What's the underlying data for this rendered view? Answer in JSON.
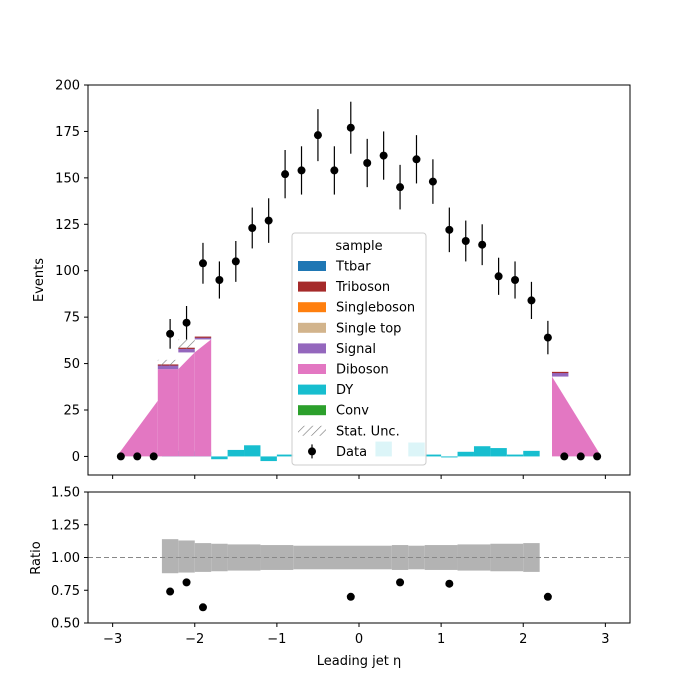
{
  "chart_data": [
    {
      "type": "histogram",
      "ylabel": "Events",
      "xlim": [
        -3.3,
        3.3
      ],
      "ylim": [
        -10,
        200
      ],
      "yticks": [
        0,
        25,
        50,
        75,
        100,
        125,
        150,
        175,
        200
      ],
      "bin_edges": [
        -3.0,
        -2.8,
        -2.6,
        -2.4,
        -2.2,
        -2.0,
        -1.8,
        -1.6,
        -1.4,
        -1.2,
        -1.0,
        -0.8,
        -0.6,
        -0.4,
        -0.2,
        0.0,
        0.2,
        0.4,
        0.6,
        0.8,
        1.0,
        1.2,
        1.4,
        1.6,
        1.8,
        2.0,
        2.2,
        2.4,
        2.6,
        2.8,
        3.0
      ],
      "dy_values": [
        0,
        0,
        0,
        3,
        3,
        2.5,
        -1.5,
        3.5,
        6,
        -2.5,
        1,
        0,
        0,
        0,
        0,
        0,
        8,
        0,
        7.5,
        1,
        -0.5,
        2.5,
        5.5,
        4.5,
        1,
        3,
        0,
        0,
        0,
        0
      ],
      "diboson_ramps": [
        {
          "x": [
            -2.95,
            -2.45
          ],
          "top": [
            0,
            30
          ]
        },
        {
          "x": [
            -2.45,
            -2.2
          ],
          "top": [
            47,
            47
          ]
        },
        {
          "x": [
            -2.2,
            -2.0
          ],
          "top": [
            47,
            56
          ]
        },
        {
          "x": [
            -2.0,
            -1.8
          ],
          "top": [
            56,
            63
          ]
        },
        {
          "x": [
            2.35,
            2.95
          ],
          "top": [
            43,
            0
          ]
        }
      ],
      "signal_caps": [
        {
          "x": [
            -2.45,
            -2.2
          ],
          "y0": 47,
          "y1": 49
        },
        {
          "x": [
            -2.2,
            -2.0
          ],
          "y0": 56,
          "y1": 58
        },
        {
          "x": [
            -2.0,
            -1.8
          ],
          "y0": 63,
          "y1": 64
        },
        {
          "x": [
            2.35,
            2.55
          ],
          "y0": 43,
          "y1": 45
        }
      ],
      "stat_unc_boxes": [
        {
          "x": [
            -2.45,
            -2.2
          ],
          "y0": 49,
          "y1": 52
        },
        {
          "x": [
            -2.2,
            -2.0
          ],
          "y0": 58,
          "y1": 63
        }
      ],
      "data_points": [
        {
          "x": -2.9,
          "y": 0,
          "err": 0
        },
        {
          "x": -2.7,
          "y": 0,
          "err": 0
        },
        {
          "x": -2.5,
          "y": 0,
          "err": 0
        },
        {
          "x": -2.3,
          "y": 66,
          "err": 8
        },
        {
          "x": -2.1,
          "y": 72,
          "err": 9
        },
        {
          "x": -1.9,
          "y": 104,
          "err": 11
        },
        {
          "x": -1.7,
          "y": 95,
          "err": 10
        },
        {
          "x": -1.5,
          "y": 105,
          "err": 11
        },
        {
          "x": -1.3,
          "y": 123,
          "err": 11
        },
        {
          "x": -1.1,
          "y": 127,
          "err": 12
        },
        {
          "x": -0.9,
          "y": 152,
          "err": 13
        },
        {
          "x": -0.7,
          "y": 154,
          "err": 13
        },
        {
          "x": -0.5,
          "y": 173,
          "err": 14
        },
        {
          "x": -0.3,
          "y": 154,
          "err": 13
        },
        {
          "x": -0.1,
          "y": 177,
          "err": 14
        },
        {
          "x": 0.1,
          "y": 158,
          "err": 13
        },
        {
          "x": 0.3,
          "y": 162,
          "err": 13
        },
        {
          "x": 0.5,
          "y": 145,
          "err": 12
        },
        {
          "x": 0.7,
          "y": 160,
          "err": 13
        },
        {
          "x": 0.9,
          "y": 148,
          "err": 12
        },
        {
          "x": 1.1,
          "y": 122,
          "err": 12
        },
        {
          "x": 1.3,
          "y": 116,
          "err": 11
        },
        {
          "x": 1.5,
          "y": 114,
          "err": 11
        },
        {
          "x": 1.7,
          "y": 97,
          "err": 10
        },
        {
          "x": 1.9,
          "y": 95,
          "err": 10
        },
        {
          "x": 2.1,
          "y": 84,
          "err": 10
        },
        {
          "x": 2.3,
          "y": 64,
          "err": 9
        },
        {
          "x": 2.5,
          "y": 0,
          "err": 0
        },
        {
          "x": 2.7,
          "y": 0,
          "err": 0
        },
        {
          "x": 2.9,
          "y": 0,
          "err": 0
        }
      ],
      "legend": {
        "title": "sample",
        "entries": [
          {
            "label": "Ttbar",
            "color": "#1f77b4",
            "kind": "patch"
          },
          {
            "label": "Triboson",
            "color": "#a52a2a",
            "kind": "patch"
          },
          {
            "label": "Singleboson",
            "color": "#ff7f0e",
            "kind": "patch"
          },
          {
            "label": "Single top",
            "color": "#d2b48c",
            "kind": "patch"
          },
          {
            "label": "Signal",
            "color": "#9467bd",
            "kind": "patch"
          },
          {
            "label": "Diboson",
            "color": "#e377c2",
            "kind": "patch"
          },
          {
            "label": "DY",
            "color": "#17becf",
            "kind": "patch"
          },
          {
            "label": "Conv",
            "color": "#2ca02c",
            "kind": "patch"
          },
          {
            "label": "Stat. Unc.",
            "color": "#777777",
            "kind": "hatch"
          },
          {
            "label": "Data",
            "color": "#000000",
            "kind": "marker"
          }
        ]
      }
    },
    {
      "type": "scatter",
      "xlabel": "Leading jet  η",
      "ylabel": "Ratio",
      "xlim": [
        -3.3,
        3.3
      ],
      "ylim": [
        0.5,
        1.5
      ],
      "xticks": [
        -3,
        -2,
        -1,
        0,
        1,
        2,
        3
      ],
      "yticks": [
        "0.50",
        "0.75",
        "1.00",
        "1.25",
        "1.50"
      ],
      "reference_line": 1.0,
      "unc_band": [
        {
          "x": [
            -2.4,
            -2.2
          ],
          "lo": 0.88,
          "hi": 1.14
        },
        {
          "x": [
            -2.2,
            -2.0
          ],
          "lo": 0.885,
          "hi": 1.13
        },
        {
          "x": [
            -2.0,
            -1.8
          ],
          "lo": 0.89,
          "hi": 1.11
        },
        {
          "x": [
            -1.8,
            -1.6
          ],
          "lo": 0.895,
          "hi": 1.105
        },
        {
          "x": [
            -1.6,
            -1.2
          ],
          "lo": 0.9,
          "hi": 1.1
        },
        {
          "x": [
            -1.2,
            -0.8
          ],
          "lo": 0.905,
          "hi": 1.095
        },
        {
          "x": [
            -0.8,
            0.4
          ],
          "lo": 0.91,
          "hi": 1.09
        },
        {
          "x": [
            0.4,
            0.6
          ],
          "lo": 0.905,
          "hi": 1.095
        },
        {
          "x": [
            0.6,
            0.8
          ],
          "lo": 0.91,
          "hi": 1.09
        },
        {
          "x": [
            0.8,
            1.2
          ],
          "lo": 0.905,
          "hi": 1.095
        },
        {
          "x": [
            1.2,
            1.6
          ],
          "lo": 0.9,
          "hi": 1.1
        },
        {
          "x": [
            1.6,
            2.0
          ],
          "lo": 0.895,
          "hi": 1.105
        },
        {
          "x": [
            2.0,
            2.2
          ],
          "lo": 0.89,
          "hi": 1.11
        }
      ],
      "points": [
        {
          "x": -2.3,
          "y": 0.74
        },
        {
          "x": -2.1,
          "y": 0.81
        },
        {
          "x": -1.9,
          "y": 0.62
        },
        {
          "x": -0.1,
          "y": 0.7
        },
        {
          "x": 0.5,
          "y": 0.81
        },
        {
          "x": 1.1,
          "y": 0.8
        },
        {
          "x": 2.3,
          "y": 0.7
        }
      ]
    }
  ]
}
